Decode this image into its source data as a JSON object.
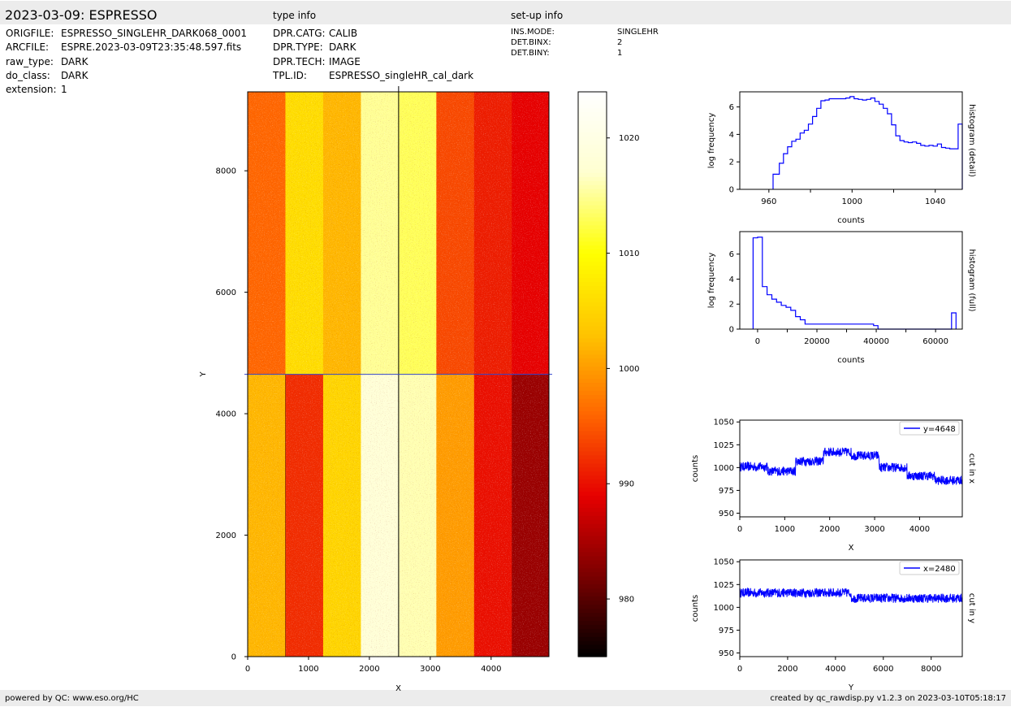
{
  "header": {
    "title": "2023-03-09: ESPRESSO",
    "type_info_title": "type info",
    "setup_info_title": "set-up info"
  },
  "file_info": [
    {
      "key": "ORIGFILE:",
      "value": "ESPRESSO_SINGLEHR_DARK068_0001"
    },
    {
      "key": "ARCFILE:",
      "value": "ESPRE.2023-03-09T23:35:48.597.fits"
    },
    {
      "key": "raw_type:",
      "value": "DARK"
    },
    {
      "key": "do_class:",
      "value": "DARK"
    },
    {
      "key": "extension:",
      "value": "1"
    }
  ],
  "type_info": [
    {
      "key": "DPR.CATG:",
      "value": "CALIB"
    },
    {
      "key": "DPR.TYPE:",
      "value": "DARK"
    },
    {
      "key": "DPR.TECH:",
      "value": "IMAGE"
    },
    {
      "key": "TPL.ID:",
      "value": "ESPRESSO_singleHR_cal_dark"
    }
  ],
  "setup_info": [
    {
      "key": "INS.MODE:",
      "value": "SINGLEHR"
    },
    {
      "key": "DET.BINX:",
      "value": "2"
    },
    {
      "key": "DET.BINY:",
      "value": "1"
    }
  ],
  "footer": {
    "left": "powered by QC: www.eso.org/HC",
    "right": "created by qc_rawdisp.py v1.2.3 on 2023-03-10T05:18:17"
  },
  "colors": {
    "band": "#ececec",
    "line": "#0000ff",
    "cmap": [
      "#000000",
      "#7a0000",
      "#e60000",
      "#ff6600",
      "#ffc400",
      "#ffff00",
      "#ffffd0",
      "#ffffff"
    ]
  },
  "chart_data": [
    {
      "type": "heatmap",
      "id": "image",
      "xlabel": "X",
      "ylabel": "Y",
      "xlim": [
        0,
        4950
      ],
      "ylim": [
        0,
        9300
      ],
      "xticks": [
        0,
        1000,
        2000,
        3000,
        4000
      ],
      "yticks": [
        0,
        2000,
        4000,
        6000,
        8000
      ],
      "crosshair": {
        "x": 2480,
        "y": 4648
      },
      "columns_x": [
        0,
        620,
        1240,
        1860,
        2480,
        3100,
        3720,
        4340,
        4950
      ],
      "rows_y": [
        0,
        4648,
        9300
      ],
      "column_values_bottom": [
        1002,
        992,
        1005,
        1018,
        1016,
        1000,
        990,
        984
      ],
      "column_values_top": [
        996,
        1006,
        1002,
        1015,
        1013,
        994,
        991,
        989
      ]
    },
    {
      "type": "colorbar",
      "id": "colorbar",
      "range": [
        975,
        1024
      ],
      "ticks": [
        980,
        990,
        1000,
        1010,
        1020
      ]
    },
    {
      "type": "histogram",
      "id": "hist_detail",
      "ylabel": "log frequency",
      "xlabel": "counts",
      "right_label": "histogram (detail)",
      "xlim": [
        946,
        1053
      ],
      "ylim": [
        0,
        7.1
      ],
      "xticks": [
        960,
        1000,
        1040
      ],
      "xticks_minor": [
        980,
        1020
      ],
      "yticks": [
        0,
        2,
        4,
        6
      ],
      "bin_edges": [
        962,
        965,
        967,
        969,
        971,
        973,
        975,
        977,
        979,
        981,
        983,
        985,
        987,
        989,
        991,
        993,
        995,
        997,
        999,
        1001,
        1003,
        1005,
        1007,
        1009,
        1011,
        1013,
        1015,
        1017,
        1019,
        1021,
        1023,
        1025,
        1027,
        1029,
        1031,
        1033,
        1035,
        1037,
        1039,
        1041,
        1043,
        1045,
        1047,
        1049,
        1051,
        1053
      ],
      "values": [
        1.1,
        1.9,
        2.6,
        3.1,
        3.5,
        3.65,
        4.1,
        4.3,
        4.75,
        5.3,
        5.9,
        6.45,
        6.5,
        6.6,
        6.6,
        6.6,
        6.6,
        6.65,
        6.75,
        6.6,
        6.55,
        6.5,
        6.55,
        6.65,
        6.4,
        6.2,
        5.9,
        5.5,
        4.7,
        3.9,
        3.55,
        3.45,
        3.4,
        3.45,
        3.35,
        3.2,
        3.15,
        3.2,
        3.15,
        3.3,
        3.05,
        3.0,
        2.95,
        2.95,
        4.75
      ]
    },
    {
      "type": "histogram",
      "id": "hist_full",
      "ylabel": "log frequency",
      "xlabel": "counts",
      "right_label": "histogram (full)",
      "xlim": [
        -6000,
        69000
      ],
      "ylim": [
        0,
        7.8
      ],
      "xticks": [
        0,
        20000,
        40000,
        60000
      ],
      "xticks_minor": [
        10000,
        30000,
        50000
      ],
      "yticks": [
        0,
        2,
        4,
        6
      ],
      "bin_edges": [
        -1500,
        0,
        1600,
        3200,
        4800,
        6400,
        8000,
        9600,
        11200,
        12800,
        14400,
        16000,
        39100,
        40600,
        65400,
        66900
      ],
      "values": [
        7.3,
        7.35,
        3.4,
        2.75,
        2.4,
        2.15,
        1.9,
        1.75,
        1.5,
        1.0,
        0.75,
        0.4,
        0.28,
        0,
        1.3
      ]
    },
    {
      "type": "line",
      "id": "cut_x",
      "xlabel": "X",
      "ylabel": "counts",
      "right_label": "cut in x",
      "legend": "y=4648",
      "legend_position": "top-right",
      "xlim": [
        0,
        4950
      ],
      "ylim": [
        946,
        1052
      ],
      "xticks": [
        0,
        1000,
        2000,
        3000,
        4000
      ],
      "yticks": [
        950,
        975,
        1000,
        1025,
        1050
      ],
      "segments": [
        {
          "from": 0,
          "to": 620,
          "mean": 1001
        },
        {
          "from": 620,
          "to": 1240,
          "mean": 996
        },
        {
          "from": 1240,
          "to": 1860,
          "mean": 1007
        },
        {
          "from": 1860,
          "to": 2480,
          "mean": 1017
        },
        {
          "from": 2480,
          "to": 3100,
          "mean": 1013
        },
        {
          "from": 3100,
          "to": 3720,
          "mean": 1000
        },
        {
          "from": 3720,
          "to": 4340,
          "mean": 991
        },
        {
          "from": 4340,
          "to": 4950,
          "mean": 986
        }
      ]
    },
    {
      "type": "line",
      "id": "cut_y",
      "xlabel": "Y",
      "ylabel": "counts",
      "right_label": "cut in y",
      "legend": "x=2480",
      "legend_position": "top-right",
      "xlim": [
        0,
        9300
      ],
      "ylim": [
        946,
        1052
      ],
      "xticks": [
        0,
        2000,
        4000,
        6000,
        8000
      ],
      "yticks": [
        950,
        975,
        1000,
        1025,
        1050
      ],
      "segments": [
        {
          "from": 0,
          "to": 4648,
          "mean": 1016
        },
        {
          "from": 4648,
          "to": 9300,
          "mean": 1010
        }
      ]
    }
  ]
}
